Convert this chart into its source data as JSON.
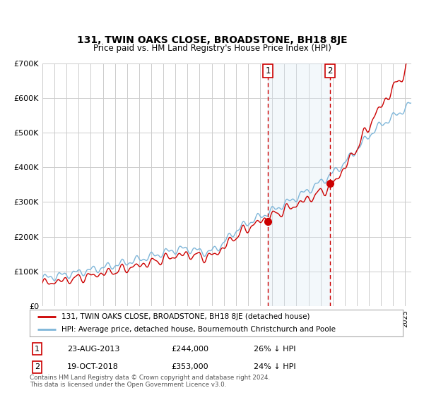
{
  "title": "131, TWIN OAKS CLOSE, BROADSTONE, BH18 8JE",
  "subtitle": "Price paid vs. HM Land Registry's House Price Index (HPI)",
  "ylim": [
    0,
    700000
  ],
  "yticks": [
    0,
    100000,
    200000,
    300000,
    400000,
    500000,
    600000,
    700000
  ],
  "ytick_labels": [
    "£0",
    "£100K",
    "£200K",
    "£300K",
    "£400K",
    "£500K",
    "£600K",
    "£700K"
  ],
  "hpi_color": "#7EB6D9",
  "price_color": "#CC0000",
  "marker_color": "#CC0000",
  "shade_color": "#DAE8F5",
  "vline_color": "#CC0000",
  "grid_color": "#CCCCCC",
  "sale1_date": 2013.644,
  "sale1_price": 244000,
  "sale1_label": "1",
  "sale2_date": 2018.8,
  "sale2_price": 353000,
  "sale2_label": "2",
  "legend_red_label": "131, TWIN OAKS CLOSE, BROADSTONE, BH18 8JE (detached house)",
  "legend_blue_label": "HPI: Average price, detached house, Bournemouth Christchurch and Poole",
  "info1_num": "1",
  "info1_date": "23-AUG-2013",
  "info1_price": "£244,000",
  "info1_hpi": "26% ↓ HPI",
  "info2_num": "2",
  "info2_date": "19-OCT-2018",
  "info2_price": "£353,000",
  "info2_hpi": "24% ↓ HPI",
  "footnote": "Contains HM Land Registry data © Crown copyright and database right 2024.\nThis data is licensed under the Open Government Licence v3.0.",
  "background_color": "#FFFFFF",
  "plot_bg_color": "#FFFFFF"
}
